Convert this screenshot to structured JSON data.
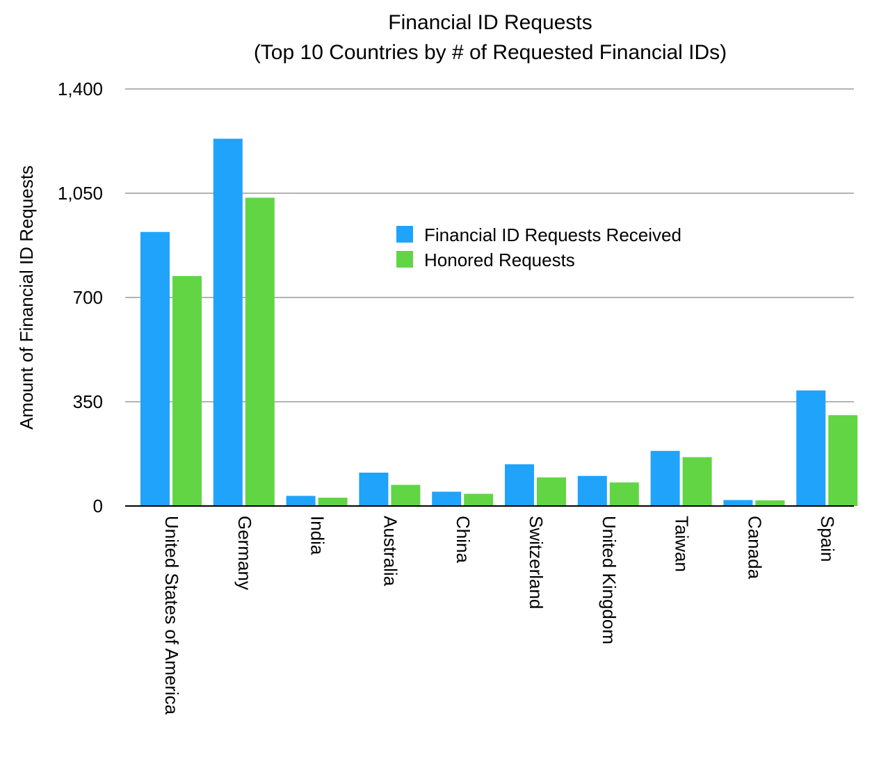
{
  "chart_data": {
    "type": "bar",
    "title": "Financial ID Requests",
    "subtitle": "(Top 10 Countries by # of Requested Financial IDs)",
    "xlabel": "",
    "ylabel": "Amount of Financial ID Requests",
    "ylim": [
      0,
      1400
    ],
    "yticks": [
      0,
      350,
      700,
      1050,
      1400
    ],
    "ytick_labels": [
      "0",
      "350",
      "700",
      "1,050",
      "1,400"
    ],
    "grid": true,
    "legend_position": "upper-center-right",
    "categories": [
      "United States of America",
      "Germany",
      "India",
      "Australia",
      "China",
      "Switzerland",
      "United Kingdom",
      "Taiwan",
      "Canada",
      "Spain"
    ],
    "series": [
      {
        "name": "Financial ID Requests Received",
        "color": "#1fa3fb",
        "values": [
          920,
          1233,
          34,
          112,
          48,
          140,
          101,
          185,
          20,
          388
        ]
      },
      {
        "name": "Honored Requests",
        "color": "#61d544",
        "values": [
          772,
          1035,
          28,
          71,
          41,
          96,
          79,
          164,
          19,
          305
        ]
      }
    ]
  }
}
